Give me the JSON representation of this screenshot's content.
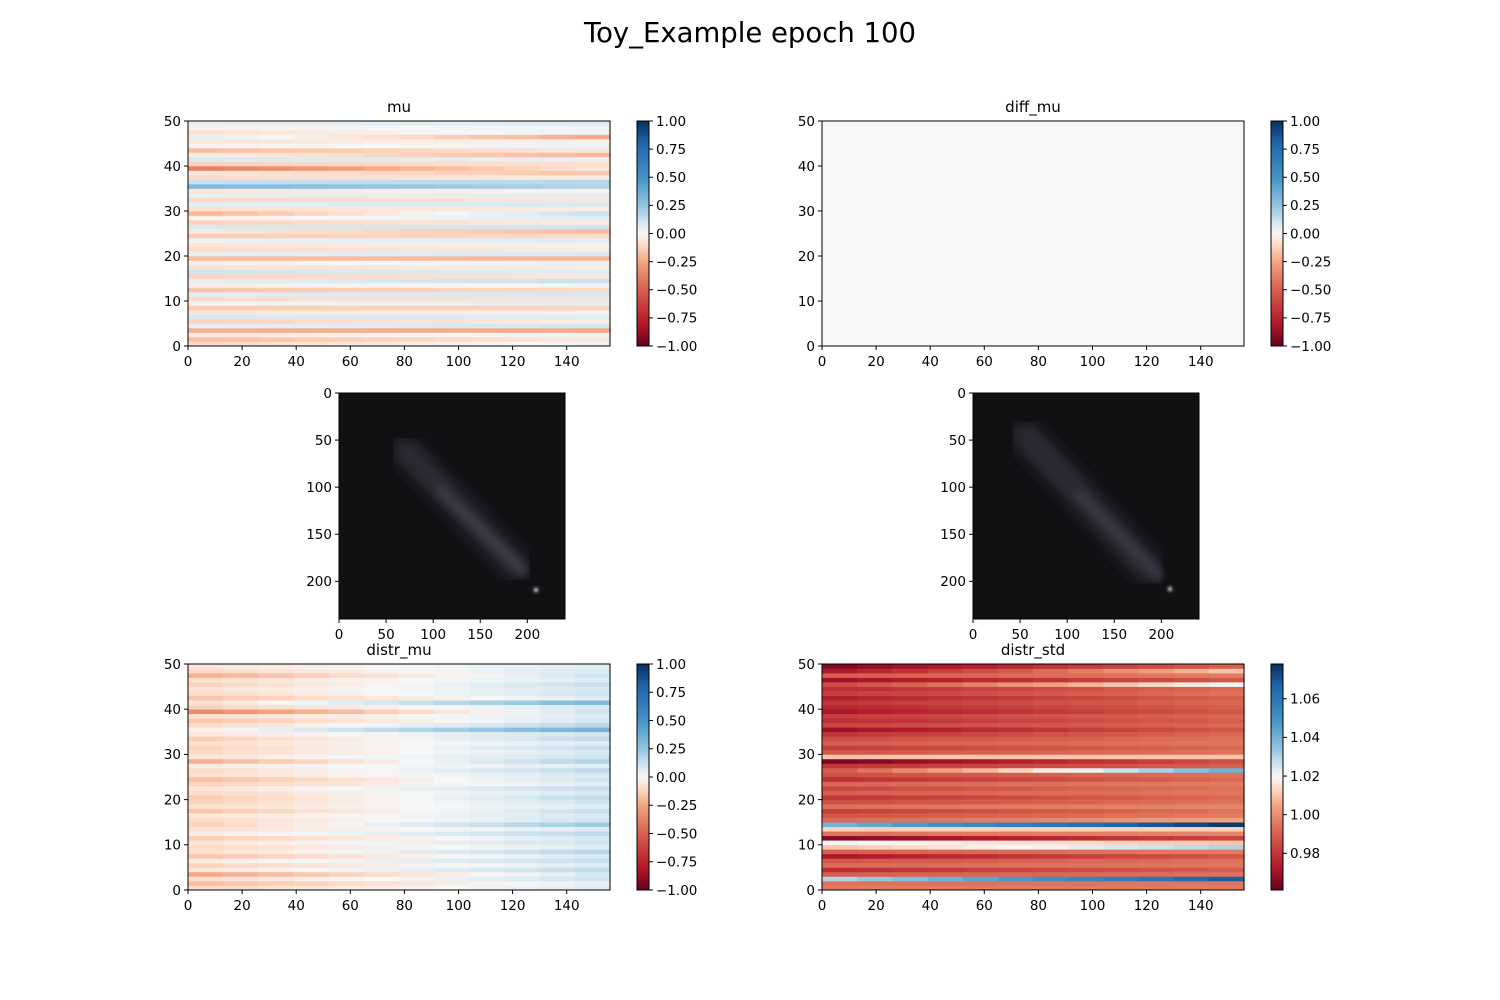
{
  "figure": {
    "title": "Toy_Example epoch 100"
  },
  "chart_data": [
    {
      "type": "heatmap",
      "title": "mu",
      "xlim": [
        0,
        156
      ],
      "ylim": [
        0,
        50
      ],
      "x_ticks": [
        0,
        20,
        40,
        60,
        80,
        100,
        120,
        140
      ],
      "y_ticks": [
        0,
        10,
        20,
        30,
        40,
        50
      ],
      "colormap": "RdBu",
      "clim": [
        -1.0,
        1.0
      ],
      "colorbar_ticks": [
        "1.00",
        "0.75",
        "0.50",
        "0.25",
        "0.00",
        "−0.25",
        "−0.50",
        "−0.75",
        "−1.00"
      ],
      "rows": 50,
      "row_values_left": [
        -0.1,
        -0.18,
        -0.05,
        -0.22,
        0.04,
        -0.12,
        0.08,
        -0.06,
        -0.14,
        0.02,
        -0.1,
        0.06,
        -0.16,
        -0.04,
        0.05,
        -0.12,
        0.1,
        -0.08,
        -0.03,
        -0.18,
        0.04,
        -0.1,
        -0.06,
        0.03,
        -0.14,
        -0.05,
        0.08,
        -0.12,
        -0.02,
        -0.2,
        -0.08,
        0.05,
        -0.1,
        0.04,
        -0.06,
        0.3,
        0.12,
        -0.1,
        -0.06,
        -0.38,
        -0.12,
        0.08,
        -0.04,
        -0.18,
        -0.02,
        -0.06,
        0.05,
        -0.08,
        -0.02,
        0.04
      ],
      "row_values_right": [
        0.02,
        -0.06,
        0.03,
        -0.24,
        0.1,
        -0.04,
        0.06,
        -0.02,
        -0.12,
        0.05,
        -0.06,
        0.08,
        -0.1,
        0.02,
        0.12,
        -0.06,
        0.06,
        -0.04,
        0.04,
        -0.2,
        0.08,
        -0.04,
        -0.02,
        0.06,
        -0.1,
        -0.18,
        0.1,
        -0.04,
        0.06,
        0.12,
        -0.04,
        0.08,
        -0.06,
        0.06,
        -0.02,
        0.18,
        0.16,
        -0.04,
        -0.16,
        -0.06,
        -0.08,
        0.04,
        -0.2,
        -0.06,
        0.03,
        -0.02,
        -0.24,
        0.03,
        0.02,
        0.06
      ]
    },
    {
      "type": "heatmap",
      "title": "diff_mu",
      "xlim": [
        0,
        156
      ],
      "ylim": [
        0,
        50
      ],
      "x_ticks": [
        0,
        20,
        40,
        60,
        80,
        100,
        120,
        140
      ],
      "y_ticks": [
        0,
        10,
        20,
        30,
        40,
        50
      ],
      "colormap": "RdBu",
      "clim": [
        -1.0,
        1.0
      ],
      "colorbar_ticks": [
        "1.00",
        "0.75",
        "0.50",
        "0.25",
        "0.00",
        "−0.25",
        "−0.50",
        "−0.75",
        "−1.00"
      ],
      "rows": 50,
      "uniform_value": 0.0
    },
    {
      "type": "image",
      "title": "",
      "xlim": [
        0,
        240
      ],
      "ylim": [
        240,
        0
      ],
      "x_ticks": [
        0,
        50,
        100,
        150,
        200
      ],
      "y_ticks": [
        0,
        50,
        100,
        150,
        200
      ],
      "background": "#111114",
      "features": {
        "streak_from": [
          70,
          60
        ],
        "streak_to": [
          190,
          185
        ],
        "spot": [
          210,
          210
        ]
      }
    },
    {
      "type": "image",
      "title": "",
      "xlim": [
        0,
        240
      ],
      "ylim": [
        240,
        0
      ],
      "x_ticks": [
        0,
        50,
        100,
        150,
        200
      ],
      "y_ticks": [
        0,
        50,
        100,
        150,
        200
      ],
      "background": "#111114",
      "features": {
        "streak_from": [
          55,
          45
        ],
        "streak_to": [
          190,
          190
        ],
        "spot": [
          209,
          208
        ]
      }
    },
    {
      "type": "heatmap",
      "title": "distr_mu",
      "xlim": [
        0,
        156
      ],
      "ylim": [
        0,
        50
      ],
      "x_ticks": [
        0,
        20,
        40,
        60,
        80,
        100,
        120,
        140
      ],
      "y_ticks": [
        0,
        10,
        20,
        30,
        40,
        50
      ],
      "colormap": "RdBu",
      "clim": [
        -1.0,
        1.0
      ],
      "colorbar_ticks": [
        "1.00",
        "0.75",
        "0.50",
        "0.25",
        "0.00",
        "−0.25",
        "−0.50",
        "−0.75",
        "−1.00"
      ],
      "rows": 50,
      "row_values_left": [
        -0.1,
        -0.18,
        -0.08,
        -0.24,
        -0.06,
        -0.12,
        -0.04,
        -0.16,
        -0.08,
        -0.1,
        -0.06,
        -0.14,
        -0.04,
        -0.08,
        -0.12,
        -0.1,
        -0.06,
        -0.16,
        -0.08,
        -0.12,
        -0.14,
        -0.1,
        -0.06,
        -0.12,
        -0.18,
        -0.08,
        -0.1,
        -0.04,
        -0.22,
        -0.06,
        -0.1,
        -0.12,
        -0.08,
        -0.14,
        -0.06,
        -0.02,
        -0.1,
        -0.16,
        -0.08,
        -0.34,
        -0.12,
        -0.08,
        -0.16,
        -0.1,
        -0.06,
        -0.12,
        -0.08,
        -0.22,
        -0.1,
        -0.06
      ],
      "row_values_right": [
        0.06,
        0.04,
        0.1,
        0.08,
        0.14,
        0.06,
        0.12,
        0.08,
        0.16,
        0.06,
        0.1,
        0.08,
        0.14,
        0.06,
        0.22,
        0.1,
        0.08,
        0.12,
        0.06,
        0.1,
        0.14,
        0.08,
        0.12,
        0.06,
        0.1,
        0.08,
        0.14,
        0.06,
        0.18,
        0.1,
        0.08,
        0.12,
        0.06,
        0.14,
        0.1,
        0.34,
        0.16,
        0.08,
        0.06,
        0.1,
        0.08,
        0.3,
        0.06,
        0.1,
        0.08,
        0.12,
        0.06,
        0.1,
        0.08,
        0.06
      ]
    },
    {
      "type": "heatmap",
      "title": "distr_std",
      "xlim": [
        0,
        156
      ],
      "ylim": [
        0,
        50
      ],
      "x_ticks": [
        0,
        20,
        40,
        60,
        80,
        100,
        120,
        140
      ],
      "y_ticks": [
        0,
        10,
        20,
        30,
        40,
        50
      ],
      "colormap": "RdBu",
      "clim": [
        0.961,
        1.078
      ],
      "colorbar_ticks": [
        "1.06",
        "1.04",
        "1.02",
        "1.00",
        "0.98"
      ],
      "colorbar_tick_values": [
        1.06,
        1.04,
        1.02,
        1.0,
        0.98
      ],
      "rows": 50,
      "row_values_left": [
        0.996,
        0.994,
        1.03,
        0.99,
        0.978,
        0.993,
        0.988,
        0.972,
        0.99,
        1.01,
        1.02,
        0.966,
        0.994,
        1.012,
        1.04,
        0.992,
        0.988,
        0.982,
        0.994,
        0.986,
        0.98,
        0.99,
        0.984,
        0.992,
        0.978,
        0.986,
        0.99,
        0.98,
        0.964,
        1.01,
        0.988,
        0.982,
        0.99,
        0.986,
        0.98,
        0.97,
        0.984,
        0.978,
        0.982,
        0.972,
        0.976,
        0.98,
        0.974,
        0.982,
        0.978,
        0.985,
        0.97,
        0.99,
        0.972,
        0.966
      ],
      "row_values_right": [
        0.996,
        0.995,
        1.068,
        0.994,
        0.99,
        0.995,
        0.994,
        0.988,
        0.996,
        1.03,
        1.01,
        0.984,
        0.998,
        1.012,
        1.076,
        1.004,
        0.996,
        0.994,
        0.998,
        0.994,
        0.992,
        0.995,
        0.994,
        0.996,
        0.992,
        0.994,
        1.04,
        0.99,
        0.986,
        1.01,
        0.994,
        0.992,
        0.995,
        0.994,
        0.992,
        0.988,
        0.992,
        0.99,
        0.992,
        0.988,
        0.99,
        0.992,
        0.99,
        0.994,
        0.992,
        1.02,
        0.988,
        0.996,
        1.01,
        0.99
      ]
    }
  ]
}
